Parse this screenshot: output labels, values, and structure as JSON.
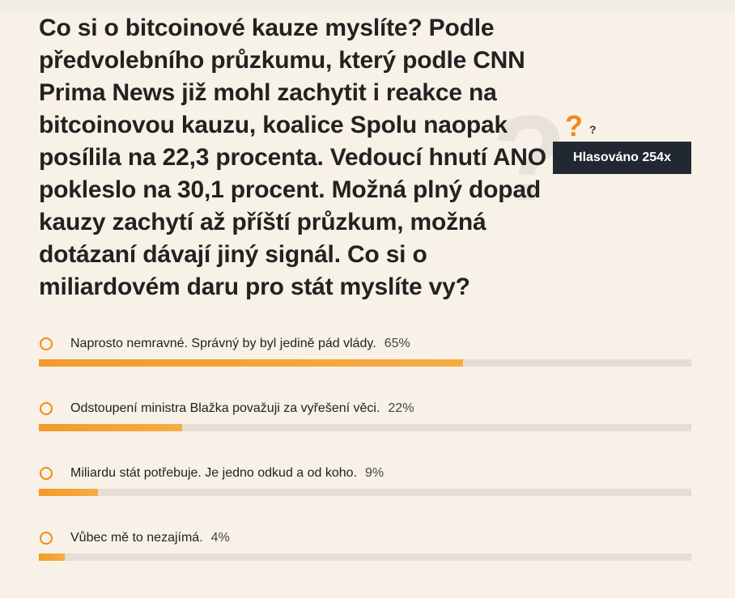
{
  "poll": {
    "question": "Co si o bitcoinové kauze myslíte? Podle předvolebního průzkumu, který podle CNN Prima News již mohl zachytit i reakce na bitcoinovou kauzu, koalice Spolu naopak posílila na 22,3 procenta. Vedoucí hnutí ANO pokleslo na 30,1 procent. Možná plný dopad kauzy zachytí až příští průzkum, možná dotázaní dávají jiný signál. Co si o miliardovém daru pro stát myslíte vy?",
    "votes_label": "Hlasováno 254x",
    "decoration": {
      "big_mark": "?",
      "orange_mark": "?",
      "small_mark": "?"
    },
    "options": [
      {
        "label": "Naprosto nemravné. Správný by byl jedině pád vlády.",
        "percent_text": "65%",
        "percent": 65
      },
      {
        "label": "Odstoupení ministra Blažka považuji za vyřešení věci.",
        "percent_text": "22%",
        "percent": 22
      },
      {
        "label": "Miliardu stát potřebuje. Je jedno odkud a od koho.",
        "percent_text": "9%",
        "percent": 9
      },
      {
        "label": "Vůbec mě to nezajímá.",
        "percent_text": "4%",
        "percent": 4
      }
    ],
    "colors": {
      "accent": "#f08a1c",
      "background": "#f8f1e8",
      "track": "#e6ded5",
      "badge": "#222831"
    },
    "icons": {
      "radio": "radio-circle-icon",
      "decoration": "question-mark-icon"
    }
  }
}
